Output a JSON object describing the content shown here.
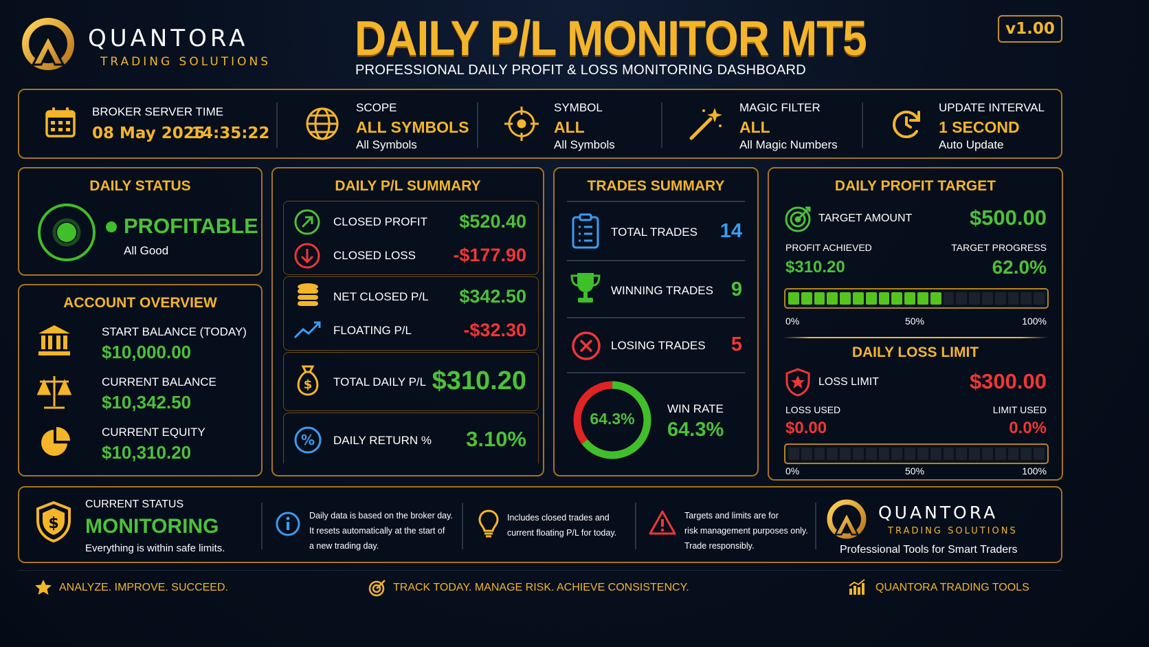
{
  "header": {
    "brand_name": "QUANTORA",
    "brand_tagline": "TRADING SOLUTIONS",
    "title": "DAILY P/L MONITOR MT5",
    "subtitle": "PROFESSIONAL DAILY PROFIT & LOSS MONITORING DASHBOARD",
    "version": "v1.00"
  },
  "infobar": {
    "server_time_label": "BROKER SERVER TIME",
    "server_date": "08 May 2025",
    "server_clock": "14:35:22",
    "scope_label": "SCOPE",
    "scope_value": "ALL SYMBOLS",
    "scope_sub": "All Symbols",
    "symbol_label": "SYMBOL",
    "symbol_value": "ALL",
    "symbol_sub": "All Symbols",
    "magic_label": "MAGIC FILTER",
    "magic_value": "ALL",
    "magic_sub": "All Magic Numbers",
    "interval_label": "UPDATE INTERVAL",
    "interval_value": "1 SECOND",
    "interval_sub": "Auto Update"
  },
  "daily_status": {
    "title": "DAILY STATUS",
    "status": "PROFITABLE",
    "sub": "All Good"
  },
  "account": {
    "title": "ACCOUNT OVERVIEW",
    "start_label": "START BALANCE (TODAY)",
    "start_value": "$10,000.00",
    "balance_label": "CURRENT BALANCE",
    "balance_value": "$10,342.50",
    "equity_label": "CURRENT EQUITY",
    "equity_value": "$10,310.20"
  },
  "pl_summary": {
    "title": "DAILY P/L SUMMARY",
    "closed_profit_label": "CLOSED PROFIT",
    "closed_profit_value": "$520.40",
    "closed_loss_label": "CLOSED LOSS",
    "closed_loss_value": "-$177.90",
    "net_label": "NET CLOSED P/L",
    "net_value": "$342.50",
    "floating_label": "FLOATING P/L",
    "floating_value": "-$32.30",
    "total_label": "TOTAL DAILY P/L",
    "total_value": "$310.20",
    "return_label": "DAILY RETURN %",
    "return_value": "3.10%"
  },
  "trades": {
    "title": "TRADES SUMMARY",
    "total_label": "TOTAL TRADES",
    "total_value": "14",
    "win_label": "WINNING TRADES",
    "win_value": "9",
    "lose_label": "LOSING TRADES",
    "lose_value": "5",
    "donut_text": "64.3%",
    "win_rate_label": "WIN RATE",
    "win_rate_value": "64.3%",
    "win_rate_fraction": 0.643
  },
  "target": {
    "title": "DAILY PROFIT TARGET",
    "amount_label": "TARGET AMOUNT",
    "amount_value": "$500.00",
    "achieved_label": "PROFIT ACHIEVED",
    "achieved_value": "$310.20",
    "progress_label": "TARGET PROGRESS",
    "progress_value": "62.0%",
    "progress_fraction": 0.62,
    "scale": [
      "0%",
      "50%",
      "100%"
    ]
  },
  "loss_limit": {
    "title": "DAILY LOSS LIMIT",
    "limit_label": "LOSS LIMIT",
    "limit_value": "$300.00",
    "used_label": "LOSS USED",
    "used_value": "$0.00",
    "limit_used_label": "LIMIT USED",
    "limit_used_value": "0.0%",
    "used_fraction": 0.0,
    "scale": [
      "0%",
      "50%",
      "100%"
    ]
  },
  "footer": {
    "status_label": "CURRENT STATUS",
    "status_value": "MONITORING",
    "status_sub": "Everything is within safe limits.",
    "info1_l1": "Daily data is based on the broker day.",
    "info1_l2": "It resets automatically at the start of",
    "info1_l3": "a new trading day.",
    "info2_l1": "Includes closed trades and",
    "info2_l2": "current floating P/L for today.",
    "info3_l1": "Targets and limits are for",
    "info3_l2": "risk management purposes only.",
    "info3_l3": "Trade responsibly.",
    "brand_name": "QUANTORA",
    "brand_tagline": "TRADING SOLUTIONS",
    "brand_slogan": "Professional Tools for Smart Traders"
  },
  "bottom": {
    "left": "ANALYZE. IMPROVE. SUCCEED.",
    "center": "TRACK TODAY. MANAGE RISK. ACHIEVE CONSISTENCY.",
    "right": "QUANTORA TRADING TOOLS"
  },
  "colors": {
    "accent": "#f4b52a",
    "profit": "#4cc13a",
    "loss": "#f03636",
    "info": "#3d9cf0"
  }
}
